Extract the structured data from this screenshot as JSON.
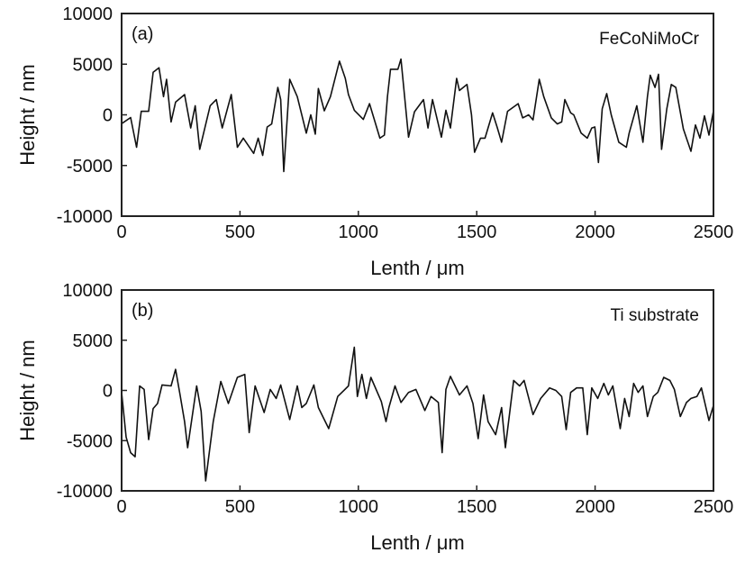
{
  "chart_data": [
    {
      "type": "line",
      "panel_label": "(a)",
      "series_label": "FeCoNiMoCr",
      "xlabel": "Lenth / μm",
      "ylabel": "Height / nm",
      "xlim": [
        0,
        2500
      ],
      "ylim": [
        -10000,
        10000
      ],
      "xticks": [
        0,
        500,
        1000,
        1500,
        2000,
        2500
      ],
      "yticks": [
        10000,
        5000,
        0,
        -5000,
        -10000
      ],
      "grid": false,
      "x": [
        0,
        38,
        63,
        83,
        114,
        133,
        158,
        177,
        190,
        209,
        228,
        266,
        292,
        311,
        330,
        374,
        400,
        425,
        463,
        489,
        514,
        558,
        577,
        596,
        615,
        634,
        660,
        672,
        685,
        710,
        742,
        780,
        799,
        818,
        831,
        856,
        882,
        920,
        945,
        958,
        983,
        1021,
        1047,
        1091,
        1110,
        1123,
        1136,
        1167,
        1180,
        1212,
        1237,
        1275,
        1294,
        1313,
        1351,
        1370,
        1389,
        1415,
        1427,
        1459,
        1478,
        1491,
        1516,
        1535,
        1567,
        1586,
        1605,
        1630,
        1675,
        1694,
        1719,
        1738,
        1764,
        1783,
        1815,
        1840,
        1859,
        1872,
        1897,
        1910,
        1941,
        1967,
        1986,
        1999,
        2014,
        2030,
        2049,
        2068,
        2100,
        2132,
        2144,
        2176,
        2202,
        2221,
        2233,
        2253,
        2268,
        2281,
        2303,
        2322,
        2341,
        2373,
        2405,
        2424,
        2443,
        2462,
        2481,
        2500
      ],
      "y": [
        -870,
        -270,
        -3200,
        350,
        350,
        4200,
        4650,
        1800,
        3500,
        -700,
        1250,
        2000,
        -1300,
        900,
        -3400,
        900,
        1500,
        -1300,
        2000,
        -3200,
        -2300,
        -3800,
        -2300,
        -4000,
        -1200,
        -900,
        2700,
        1500,
        -5600,
        3500,
        1800,
        -1800,
        0,
        -1900,
        2600,
        400,
        1800,
        5300,
        3600,
        2000,
        450,
        -450,
        1100,
        -2300,
        -2000,
        1800,
        4500,
        4500,
        5500,
        -2200,
        300,
        1500,
        -1300,
        1500,
        -2200,
        450,
        -1300,
        3600,
        2400,
        3000,
        0,
        -3700,
        -2300,
        -2300,
        200,
        -1200,
        -2700,
        350,
        1100,
        -300,
        0,
        -500,
        3500,
        1800,
        -300,
        -900,
        -700,
        1500,
        200,
        0,
        -1800,
        -2300,
        -1300,
        -1200,
        -4700,
        600,
        2100,
        0,
        -2700,
        -3200,
        -1800,
        900,
        -2700,
        1800,
        3900,
        2700,
        4000,
        -3400,
        600,
        3000,
        2700,
        -1400,
        -3600,
        -1000,
        -2300,
        -100,
        -2000,
        400
      ]
    },
    {
      "type": "line",
      "panel_label": "(b)",
      "series_label": "Ti substrate",
      "xlabel": "Lenth / μm",
      "ylabel": "Height / nm",
      "xlim": [
        0,
        2500
      ],
      "ylim": [
        -10000,
        10000
      ],
      "xticks": [
        0,
        500,
        1000,
        1500,
        2000,
        2500
      ],
      "yticks": [
        10000,
        5000,
        0,
        -5000,
        -10000
      ],
      "grid": false,
      "x": [
        0,
        19,
        38,
        57,
        76,
        95,
        114,
        133,
        152,
        171,
        209,
        228,
        247,
        266,
        279,
        317,
        336,
        355,
        387,
        419,
        451,
        489,
        520,
        539,
        564,
        602,
        628,
        653,
        672,
        710,
        742,
        761,
        780,
        812,
        831,
        875,
        913,
        958,
        983,
        996,
        1015,
        1034,
        1053,
        1097,
        1117,
        1129,
        1155,
        1180,
        1212,
        1243,
        1281,
        1307,
        1338,
        1354,
        1370,
        1389,
        1427,
        1459,
        1484,
        1506,
        1529,
        1548,
        1580,
        1605,
        1621,
        1656,
        1681,
        1700,
        1738,
        1770,
        1808,
        1834,
        1859,
        1878,
        1897,
        1922,
        1948,
        1967,
        1986,
        2011,
        2037,
        2056,
        2075,
        2106,
        2125,
        2144,
        2163,
        2182,
        2202,
        2221,
        2246,
        2265,
        2290,
        2316,
        2335,
        2360,
        2386,
        2405,
        2430,
        2449,
        2481,
        2500
      ],
      "y": [
        -200,
        -4650,
        -6200,
        -6600,
        450,
        100,
        -4900,
        -1800,
        -1300,
        550,
        450,
        2100,
        -450,
        -3100,
        -5700,
        450,
        -2100,
        -9000,
        -3100,
        900,
        -1300,
        1300,
        1600,
        -4200,
        450,
        -2200,
        100,
        -800,
        550,
        -2900,
        450,
        -1700,
        -1300,
        550,
        -1700,
        -3800,
        -600,
        450,
        4300,
        -600,
        1600,
        -800,
        1300,
        -1100,
        -3100,
        -1700,
        450,
        -1200,
        -200,
        100,
        -2000,
        -600,
        -1200,
        -6200,
        100,
        1400,
        -450,
        450,
        -1300,
        -4800,
        -450,
        -3100,
        -4400,
        -1700,
        -5700,
        1000,
        450,
        1000,
        -2400,
        -800,
        250,
        0,
        -600,
        -3900,
        -200,
        250,
        250,
        -4400,
        250,
        -800,
        700,
        -450,
        450,
        -3800,
        -800,
        -2600,
        700,
        -200,
        450,
        -2600,
        -600,
        -200,
        1300,
        1000,
        100,
        -2600,
        -1200,
        -800,
        -600,
        250,
        -3000,
        -1500
      ]
    }
  ]
}
